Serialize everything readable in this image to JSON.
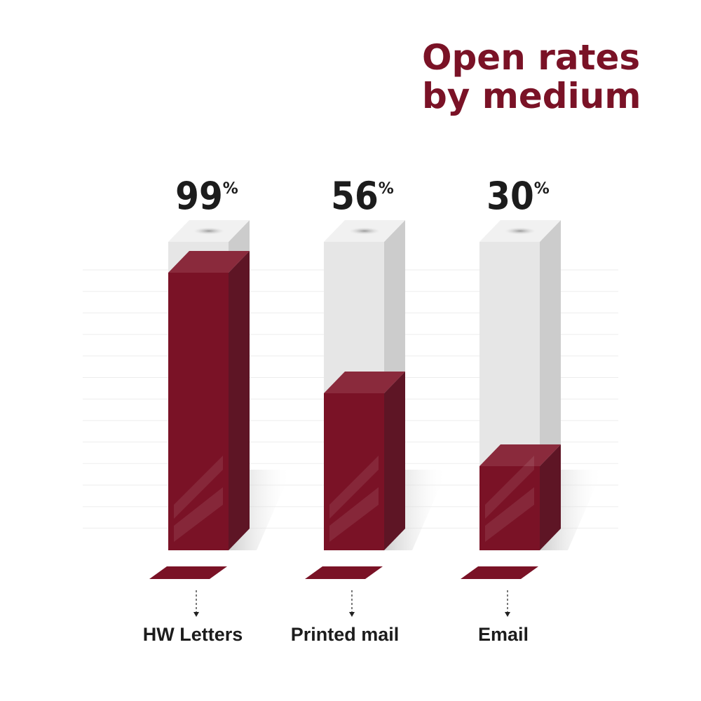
{
  "chart_data": {
    "type": "bar",
    "title_lines": [
      "Open rates",
      "by medium"
    ],
    "categories": [
      "HW Letters",
      "Printed mail",
      "Email"
    ],
    "values": [
      99,
      56,
      30
    ],
    "value_suffix": "%",
    "ylim": [
      0,
      100
    ],
    "grid": true,
    "colors": {
      "bar": "#7a1226",
      "bar_top": "#8a2a3c",
      "bar_side": "#5e1525",
      "container_front": "#e6e6e6",
      "container_side": "#cccccc",
      "container_top": "#f1f1f1",
      "title": "#7a1226",
      "text": "#1c1c1c"
    }
  }
}
